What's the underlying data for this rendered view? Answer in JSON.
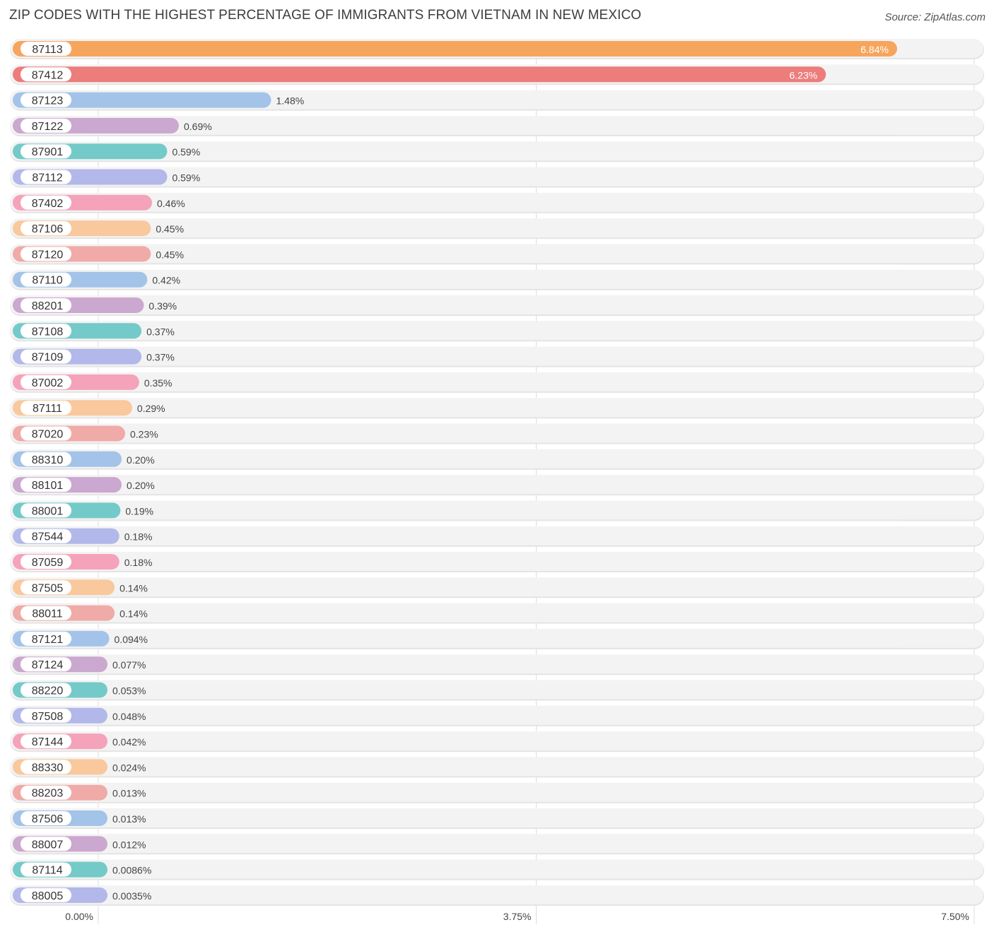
{
  "chart_data": {
    "type": "bar",
    "orientation": "horizontal",
    "title": "ZIP CODES WITH THE HIGHEST PERCENTAGE OF IMMIGRANTS FROM VIETNAM IN NEW MEXICO",
    "source": "Source: ZipAtlas.com",
    "xlabel": "",
    "ylabel": "",
    "xlim": [
      0,
      7.5
    ],
    "ticks": [
      {
        "value": 0,
        "label": "0.00%"
      },
      {
        "value": 3.75,
        "label": "3.75%"
      },
      {
        "value": 7.5,
        "label": "7.50%"
      }
    ],
    "categories": [
      "87113",
      "87412",
      "87123",
      "87122",
      "87901",
      "87112",
      "87402",
      "87106",
      "87120",
      "87110",
      "88201",
      "87108",
      "87109",
      "87002",
      "87111",
      "87020",
      "88310",
      "88101",
      "88001",
      "87544",
      "87059",
      "87505",
      "88011",
      "87121",
      "87124",
      "88220",
      "87508",
      "87144",
      "88330",
      "88203",
      "87506",
      "88007",
      "87114",
      "88005"
    ],
    "values": [
      6.84,
      6.23,
      1.48,
      0.69,
      0.59,
      0.59,
      0.46,
      0.45,
      0.45,
      0.42,
      0.39,
      0.37,
      0.37,
      0.35,
      0.29,
      0.23,
      0.2,
      0.2,
      0.19,
      0.18,
      0.18,
      0.14,
      0.14,
      0.094,
      0.077,
      0.053,
      0.048,
      0.042,
      0.024,
      0.013,
      0.013,
      0.012,
      0.0086,
      0.0035
    ],
    "value_labels": [
      "6.84%",
      "6.23%",
      "1.48%",
      "0.69%",
      "0.59%",
      "0.59%",
      "0.46%",
      "0.45%",
      "0.45%",
      "0.42%",
      "0.39%",
      "0.37%",
      "0.37%",
      "0.35%",
      "0.29%",
      "0.23%",
      "0.20%",
      "0.20%",
      "0.19%",
      "0.18%",
      "0.18%",
      "0.14%",
      "0.14%",
      "0.094%",
      "0.077%",
      "0.053%",
      "0.048%",
      "0.042%",
      "0.024%",
      "0.013%",
      "0.013%",
      "0.012%",
      "0.0086%",
      "0.0035%"
    ],
    "colors": [
      "#f6a55d",
      "#ec7d7b",
      "#a3c3e9",
      "#cba8cf",
      "#74cac9",
      "#b2b8ea",
      "#f5a2bb",
      "#f9c89c",
      "#f0aaa8",
      "#a3c3e9",
      "#cba8cf",
      "#74cac9",
      "#b2b8ea",
      "#f5a2bb",
      "#f9c89c",
      "#f0aaa8",
      "#a3c3e9",
      "#cba8cf",
      "#74cac9",
      "#b2b8ea",
      "#f5a2bb",
      "#f9c89c",
      "#f0aaa8",
      "#a3c3e9",
      "#cba8cf",
      "#74cac9",
      "#b2b8ea",
      "#f5a2bb",
      "#f9c89c",
      "#f0aaa8",
      "#a3c3e9",
      "#cba8cf",
      "#74cac9",
      "#b2b8ea"
    ],
    "values_inside_bar": [
      true,
      true,
      false,
      false,
      false,
      false,
      false,
      false,
      false,
      false,
      false,
      false,
      false,
      false,
      false,
      false,
      false,
      false,
      false,
      false,
      false,
      false,
      false,
      false,
      false,
      false,
      false,
      false,
      false,
      false,
      false,
      false,
      false,
      false
    ],
    "grid": true,
    "legend": "none"
  }
}
